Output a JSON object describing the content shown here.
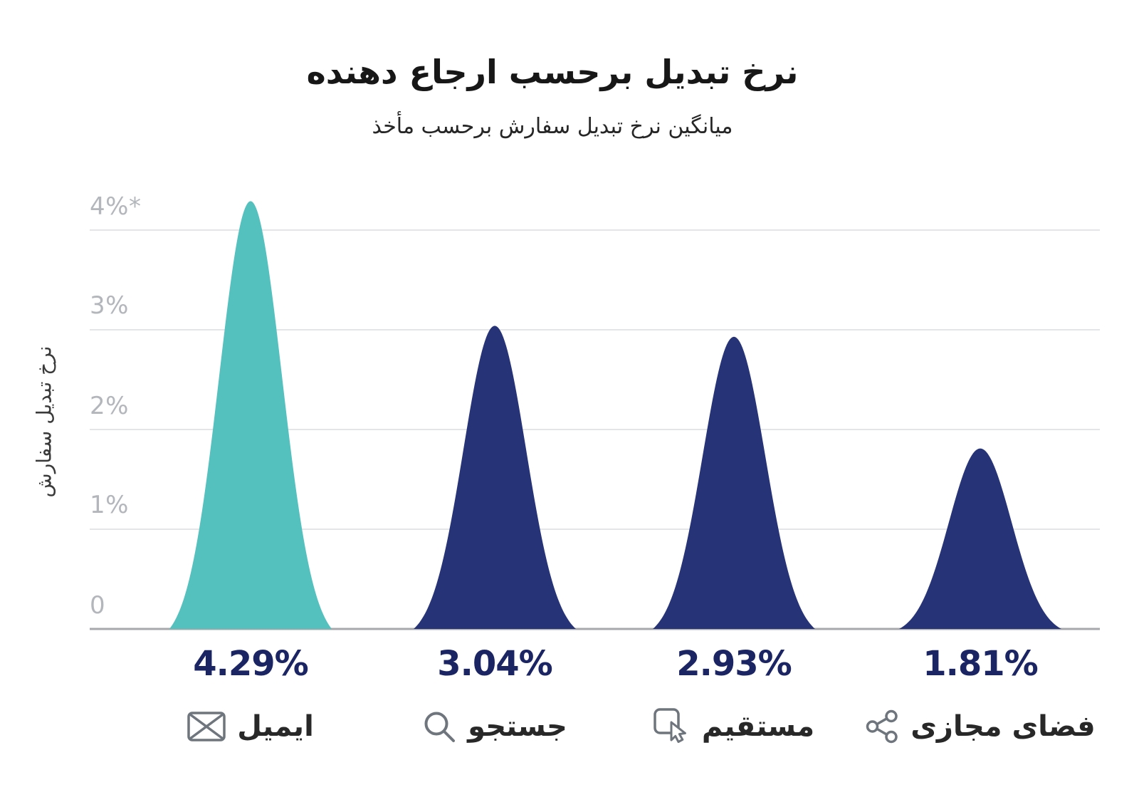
{
  "chart_data": {
    "type": "area",
    "shape": "bell-curve-per-category",
    "title": "نرخ تبدیل برحسب ارجاع دهنده",
    "subtitle": "میانگین نرخ تبدیل سفارش برحسب مأخذ",
    "ylabel": "نرخ تبدیل سفارش",
    "ylim": [
      0,
      4.4
    ],
    "grid": true,
    "legend": false,
    "yticks": [
      {
        "label": "4%*",
        "value": 4
      },
      {
        "label": "3%",
        "value": 3
      },
      {
        "label": "2%",
        "value": 2
      },
      {
        "label": "1%",
        "value": 1
      },
      {
        "label": "0",
        "value": 0
      }
    ],
    "categories": [
      {
        "label": "ایمیل",
        "icon": "envelope-icon",
        "value": 4.29,
        "value_label": "4.29%",
        "color": "#54C1BE"
      },
      {
        "label": "جستجو",
        "icon": "magnifier-icon",
        "value": 3.04,
        "value_label": "3.04%",
        "color": "#263377"
      },
      {
        "label": "مستقیم",
        "icon": "cursor-click-icon",
        "value": 2.93,
        "value_label": "2.93%",
        "color": "#263377"
      },
      {
        "label": "فضای مجازی",
        "icon": "share-icon",
        "value": 1.81,
        "value_label": "1.81%",
        "color": "#263377"
      }
    ]
  },
  "theme": {
    "accent_teal": "#54C1BE",
    "navy": "#263377",
    "value_text": "#1B2563",
    "tick_text": "#B3B6BB",
    "icon_gray": "#6E757C",
    "gridline": "#E4E5E7",
    "baseline": "#A6A8AB",
    "background": "#FFFFFF"
  }
}
